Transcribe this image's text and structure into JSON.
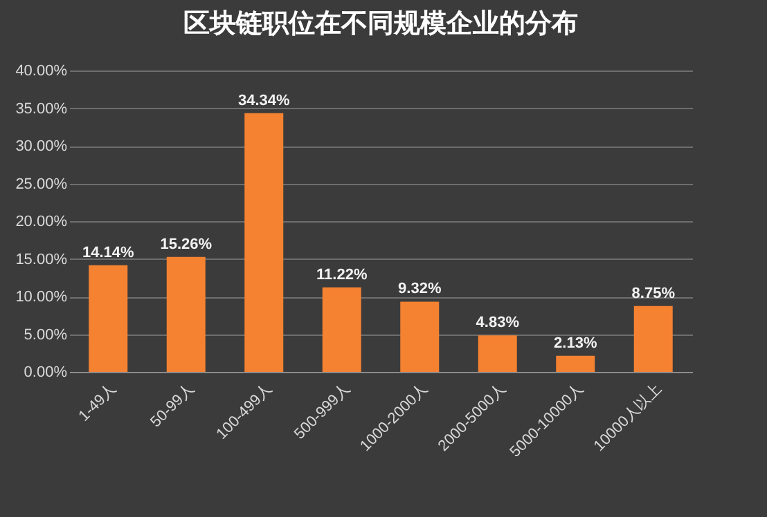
{
  "chart_data": {
    "type": "bar",
    "title": "区块链职位在不同规模企业的分布",
    "categories": [
      "1-49人",
      "50-99人",
      "100-499人",
      "500-999人",
      "1000-2000人",
      "2000-5000人",
      "5000-10000人",
      "10000人以上"
    ],
    "values": [
      14.14,
      15.26,
      34.34,
      11.22,
      9.32,
      4.83,
      2.13,
      8.75
    ],
    "value_labels": [
      "14.14%",
      "15.26%",
      "34.34%",
      "11.22%",
      "9.32%",
      "4.83%",
      "2.13%",
      "8.75%"
    ],
    "color": "#f58231",
    "ylim": [
      0,
      40
    ],
    "yticks": [
      {
        "value": 0,
        "label": "0.00%"
      },
      {
        "value": 5,
        "label": "5.00%"
      },
      {
        "value": 10,
        "label": "10.00%"
      },
      {
        "value": 15,
        "label": "15.00%"
      },
      {
        "value": 20,
        "label": "20.00%"
      },
      {
        "value": 25,
        "label": "25.00%"
      },
      {
        "value": 30,
        "label": "30.00%"
      },
      {
        "value": 35,
        "label": "35.00%"
      },
      {
        "value": 40,
        "label": "40.00%"
      }
    ],
    "grid": "y"
  }
}
